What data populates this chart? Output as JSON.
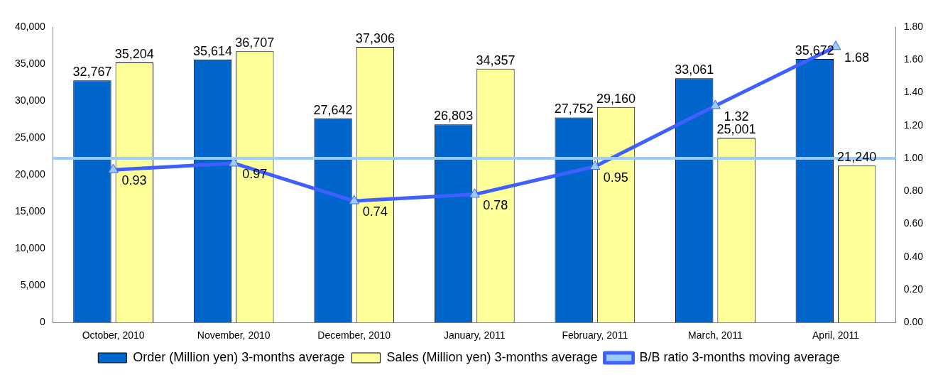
{
  "chart_data": {
    "type": "bar",
    "categories": [
      "October, 2010",
      "November, 2010",
      "December, 2010",
      "January, 2011",
      "February, 2011",
      "March, 2011",
      "April, 2011"
    ],
    "series": [
      {
        "name": "Order (Million yen) 3-months average",
        "color": "#0066cc",
        "values": [
          32767,
          35614,
          27642,
          26803,
          27752,
          33061,
          35672
        ],
        "value_labels": [
          "32,767",
          "35,614",
          "27,642",
          "26,803",
          "27,752",
          "33,061",
          "35,672"
        ]
      },
      {
        "name": "Sales (Million yen) 3-months average",
        "color": "#ffff99",
        "values": [
          35204,
          36707,
          37306,
          34357,
          29160,
          25001,
          21240
        ],
        "value_labels": [
          "35,204",
          "36,707",
          "37,306",
          "34,357",
          "29,160",
          "25,001",
          "21,240"
        ]
      },
      {
        "name": "B/B ratio 3-months moving average",
        "type": "line",
        "axis": "y2",
        "color": "#3f5fff",
        "marker": "triangle",
        "values": [
          0.93,
          0.97,
          0.74,
          0.78,
          0.95,
          1.32,
          1.68
        ],
        "value_labels": [
          "0.93",
          "0.97",
          "0.74",
          "0.78",
          "0.95",
          "1.32",
          "1.68"
        ]
      }
    ],
    "ylim": [
      0,
      40000
    ],
    "yticks": [
      0,
      {
        "value": 5000,
        "label": "5,000"
      },
      {
        "value": 10000,
        "label": "10,000"
      },
      {
        "value": 15000,
        "label": "15,000"
      },
      {
        "value": 20000,
        "label": "20,000"
      },
      {
        "value": 25000,
        "label": "25,000"
      },
      {
        "value": 30000,
        "label": "30,000"
      },
      {
        "value": 35000,
        "label": "35,000"
      },
      {
        "value": 40000,
        "label": "40,000"
      }
    ],
    "y2lim": [
      0,
      1.8
    ],
    "y2ticks": [
      {
        "value": 0,
        "label": "0.00"
      },
      {
        "value": 0.2,
        "label": "0.20"
      },
      {
        "value": 0.4,
        "label": "0.40"
      },
      {
        "value": 0.6,
        "label": "0.60"
      },
      {
        "value": 0.8,
        "label": "0.80"
      },
      {
        "value": 1,
        "label": "1.00"
      },
      {
        "value": 1.2,
        "label": "1.20"
      },
      {
        "value": 1.4,
        "label": "1.40"
      },
      {
        "value": 1.6,
        "label": "1.60"
      },
      {
        "value": 1.8,
        "label": "1.80"
      }
    ],
    "ref_lines": [
      {
        "axis": "y2",
        "value": 1,
        "color": "#99ccff"
      }
    ],
    "legend": "bottom",
    "grid": false
  }
}
